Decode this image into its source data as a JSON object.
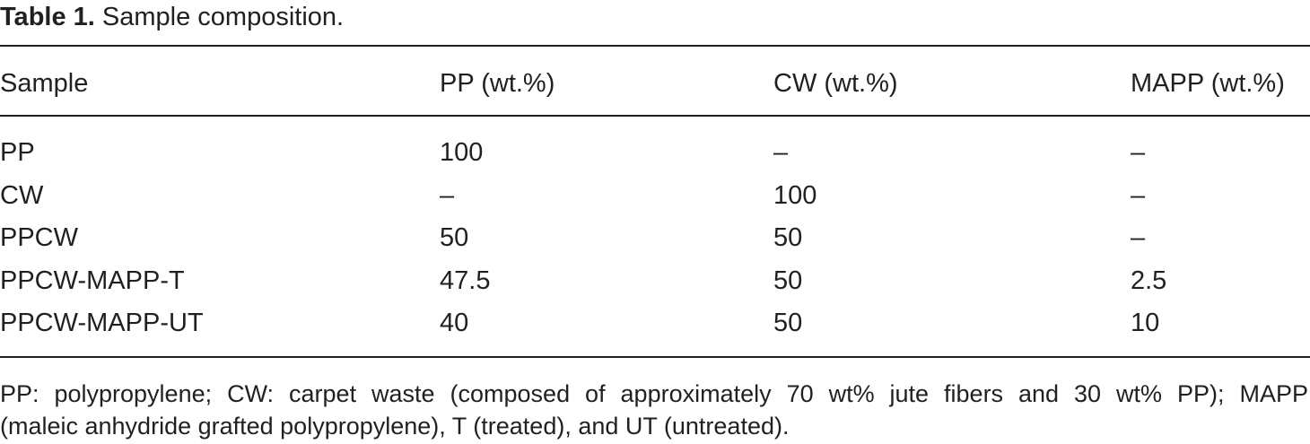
{
  "caption": {
    "label": "Table 1.",
    "text": "Sample composition."
  },
  "table": {
    "header": [
      "Sample",
      "PP (wt.%)",
      "CW (wt.%)",
      "MAPP (wt.%)"
    ],
    "rows": [
      [
        "PP",
        "100",
        "–",
        "–"
      ],
      [
        "CW",
        "–",
        "100",
        "–"
      ],
      [
        "PPCW",
        "50",
        "50",
        "–"
      ],
      [
        "PPCW-MAPP-T",
        "47.5",
        "50",
        "2.5"
      ],
      [
        "PPCW-MAPP-UT",
        "40",
        "50",
        "10"
      ]
    ]
  },
  "footnote": {
    "lines": [
      "PP: polypropylene; CW: carpet waste (composed of approximately 70 wt% jute fibers and 30 wt% PP); MAPP",
      "(maleic anhydride grafted polypropylene), T (treated), and UT (untreated)."
    ]
  }
}
